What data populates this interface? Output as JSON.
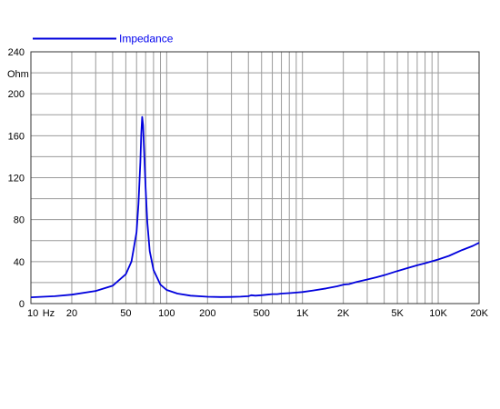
{
  "chart_data": {
    "type": "line",
    "title": "",
    "xscale": "log",
    "xlim": [
      10,
      20000
    ],
    "ylim": [
      0,
      240
    ],
    "grid": true,
    "legend_position": "top-left",
    "ylabel": "Ohm",
    "xlabel": "Hz",
    "series": [
      {
        "name": "Impedance",
        "color": "#0000dd",
        "x": [
          10,
          15,
          20,
          30,
          40,
          50,
          55,
          60,
          62,
          64,
          65,
          66,
          67,
          68,
          70,
          72,
          75,
          80,
          90,
          100,
          120,
          150,
          200,
          250,
          300,
          350,
          400,
          420,
          450,
          500,
          550,
          600,
          650,
          700,
          800,
          900,
          1000,
          1200,
          1500,
          1800,
          2000,
          2200,
          2500,
          3000,
          3500,
          4000,
          5000,
          6000,
          7000,
          8000,
          10000,
          12000,
          15000,
          18000,
          20000
        ],
        "y": [
          6,
          7,
          8.5,
          12,
          17,
          28,
          40,
          68,
          95,
          135,
          162,
          178,
          170,
          150,
          110,
          78,
          50,
          32,
          18,
          13,
          9.5,
          7.5,
          6.5,
          6.2,
          6.3,
          6.6,
          7,
          8,
          7.5,
          8,
          8.5,
          9,
          9,
          9.5,
          10,
          10.5,
          11,
          12.5,
          14.5,
          16.5,
          18,
          18.5,
          20.5,
          23,
          25,
          27,
          31,
          34,
          36.5,
          38.5,
          42,
          45.5,
          51,
          55,
          58
        ]
      }
    ],
    "ytick_labels": [
      "0",
      "40",
      "80",
      "120",
      "160",
      "200",
      "240"
    ],
    "ytick_values": [
      0,
      40,
      80,
      120,
      160,
      200,
      240
    ],
    "xtick_labels": [
      "10",
      "Hz",
      "20",
      "50",
      "100",
      "200",
      "500",
      "1K",
      "2K",
      "5K",
      "10K",
      "20K"
    ],
    "xtick_values": [
      10,
      13.5,
      20,
      50,
      100,
      200,
      500,
      1000,
      2000,
      5000,
      10000,
      20000
    ]
  }
}
